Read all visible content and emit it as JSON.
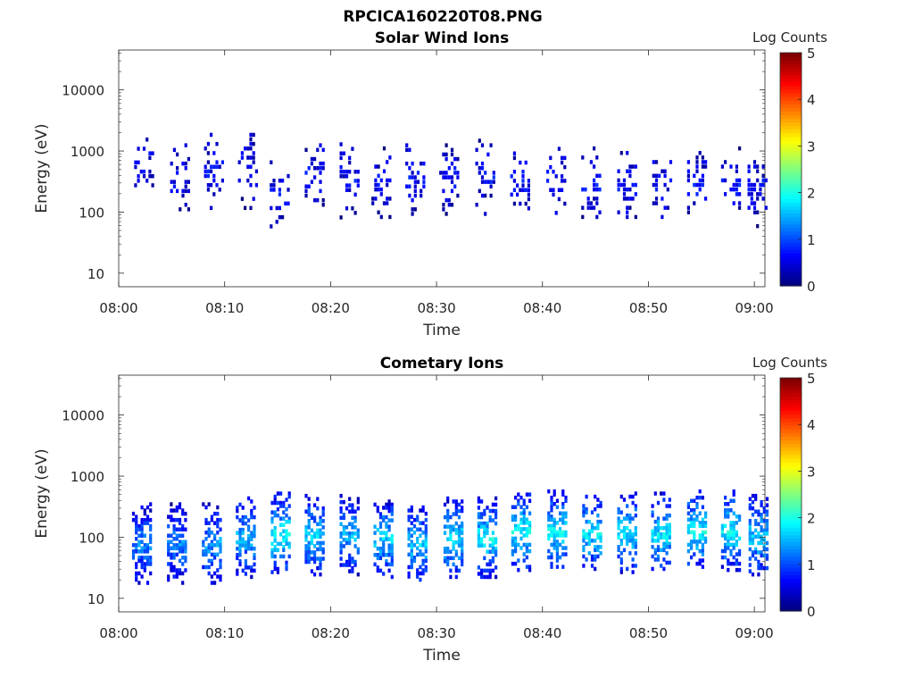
{
  "figure": {
    "title": "RPCICA160220T08.PNG"
  },
  "chart_data": [
    {
      "type": "heatmap",
      "title": "Solar Wind Ions",
      "xlabel": "Time",
      "ylabel": "Energy (eV)",
      "x_ticks": [
        "08:00",
        "08:10",
        "08:20",
        "08:30",
        "08:40",
        "08:50",
        "09:00"
      ],
      "y_ticks": [
        "10",
        "100",
        "1000",
        "10000"
      ],
      "y_scale": "log",
      "xlim": [
        "08:00",
        "09:01"
      ],
      "ylim": [
        6,
        45000
      ],
      "colorbar": {
        "label": "Log Counts",
        "ticks": [
          "0",
          "1",
          "2",
          "3",
          "4",
          "5"
        ],
        "range": [
          0,
          5
        ],
        "colormap": "jet"
      },
      "bursts": [
        {
          "t": 2.4,
          "center_ev": 700,
          "level": 0.12
        },
        {
          "t": 5.8,
          "center_ev": 400,
          "level": 0.12
        },
        {
          "t": 9.0,
          "center_ev": 500,
          "level": 0.12
        },
        {
          "t": 12.2,
          "center_ev": 500,
          "level": 0.12
        },
        {
          "t": 15.2,
          "center_ev": 250,
          "level": 0.12
        },
        {
          "t": 18.5,
          "center_ev": 400,
          "level": 0.12
        },
        {
          "t": 21.8,
          "center_ev": 350,
          "level": 0.12
        },
        {
          "t": 24.8,
          "center_ev": 300,
          "level": 0.12
        },
        {
          "t": 28.0,
          "center_ev": 400,
          "level": 0.12
        },
        {
          "t": 31.2,
          "center_ev": 400,
          "level": 0.12
        },
        {
          "t": 34.6,
          "center_ev": 400,
          "level": 0.12
        },
        {
          "t": 37.9,
          "center_ev": 350,
          "level": 0.12
        },
        {
          "t": 41.3,
          "center_ev": 350,
          "level": 0.12
        },
        {
          "t": 44.6,
          "center_ev": 300,
          "level": 0.12
        },
        {
          "t": 48.0,
          "center_ev": 300,
          "level": 0.12
        },
        {
          "t": 51.3,
          "center_ev": 300,
          "level": 0.12
        },
        {
          "t": 54.6,
          "center_ev": 300,
          "level": 0.12
        },
        {
          "t": 57.8,
          "center_ev": 300,
          "level": 0.12
        },
        {
          "t": 60.3,
          "center_ev": 300,
          "level": 0.12
        }
      ]
    },
    {
      "type": "heatmap",
      "title": "Cometary Ions",
      "xlabel": "Time",
      "ylabel": "Energy (eV)",
      "x_ticks": [
        "08:00",
        "08:10",
        "08:20",
        "08:30",
        "08:40",
        "08:50",
        "09:00"
      ],
      "y_ticks": [
        "10",
        "100",
        "1000",
        "10000"
      ],
      "y_scale": "log",
      "xlim": [
        "08:00",
        "09:01"
      ],
      "ylim": [
        6,
        45000
      ],
      "colorbar": {
        "label": "Log Counts",
        "ticks": [
          "0",
          "1",
          "2",
          "3",
          "4",
          "5"
        ],
        "range": [
          0,
          5
        ],
        "colormap": "jet"
      },
      "bursts": [
        {
          "t": 2.2,
          "center_ev": 80,
          "level": 0.25
        },
        {
          "t": 5.5,
          "center_ev": 80,
          "level": 0.25
        },
        {
          "t": 8.8,
          "center_ev": 80,
          "level": 0.28
        },
        {
          "t": 12.0,
          "center_ev": 100,
          "level": 0.3
        },
        {
          "t": 15.3,
          "center_ev": 120,
          "level": 0.38
        },
        {
          "t": 18.5,
          "center_ev": 110,
          "level": 0.33
        },
        {
          "t": 21.8,
          "center_ev": 110,
          "level": 0.3
        },
        {
          "t": 25.0,
          "center_ev": 100,
          "level": 0.33
        },
        {
          "t": 28.2,
          "center_ev": 80,
          "level": 0.32
        },
        {
          "t": 31.6,
          "center_ev": 100,
          "level": 0.35
        },
        {
          "t": 34.8,
          "center_ev": 100,
          "level": 0.37
        },
        {
          "t": 38.0,
          "center_ev": 130,
          "level": 0.38
        },
        {
          "t": 41.4,
          "center_ev": 130,
          "level": 0.37
        },
        {
          "t": 44.7,
          "center_ev": 120,
          "level": 0.35
        },
        {
          "t": 48.0,
          "center_ev": 120,
          "level": 0.35
        },
        {
          "t": 51.2,
          "center_ev": 120,
          "level": 0.35
        },
        {
          "t": 54.6,
          "center_ev": 130,
          "level": 0.37
        },
        {
          "t": 57.8,
          "center_ev": 130,
          "level": 0.37
        },
        {
          "t": 60.4,
          "center_ev": 110,
          "level": 0.33
        }
      ]
    }
  ]
}
